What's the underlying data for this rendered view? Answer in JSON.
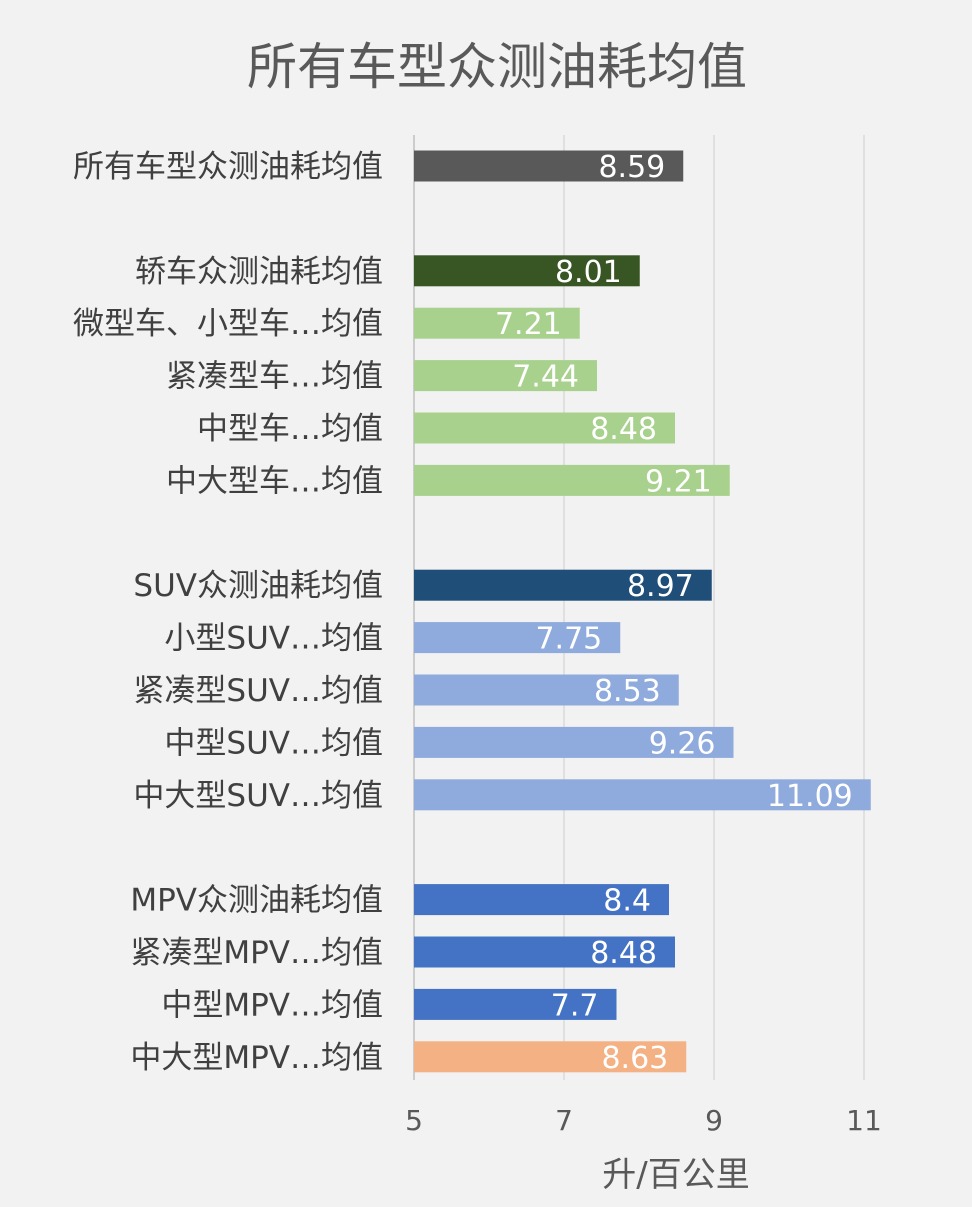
{
  "chart_data": {
    "type": "bar",
    "orientation": "horizontal",
    "title": "所有车型众测油耗均值",
    "xlabel": "升/百公里",
    "ylabel": "",
    "xlim": [
      5,
      11
    ],
    "xticks": [
      5,
      7,
      9,
      11
    ],
    "grid": true,
    "legend": "none",
    "groups": [
      {
        "bars": [
          {
            "label": "所有车型众测油耗均值",
            "value": 8.59,
            "display": "8.59",
            "color": "#595959"
          }
        ]
      },
      {
        "bars": [
          {
            "label": "轿车众测油耗均值",
            "value": 8.01,
            "display": "8.01",
            "color": "#375623"
          },
          {
            "label": "微型车、小型车…均值",
            "value": 7.21,
            "display": "7.21",
            "color": "#a9d18e"
          },
          {
            "label": "紧凑型车…均值",
            "value": 7.44,
            "display": "7.44",
            "color": "#a9d18e"
          },
          {
            "label": "中型车…均值",
            "value": 8.48,
            "display": "8.48",
            "color": "#a9d18e"
          },
          {
            "label": "中大型车…均值",
            "value": 9.21,
            "display": "9.21",
            "color": "#a9d18e"
          }
        ]
      },
      {
        "bars": [
          {
            "label": "SUV众测油耗均值",
            "value": 8.97,
            "display": "8.97",
            "color": "#1f4e79"
          },
          {
            "label": "小型SUV…均值",
            "value": 7.75,
            "display": "7.75",
            "color": "#8faadc"
          },
          {
            "label": "紧凑型SUV…均值",
            "value": 8.53,
            "display": "8.53",
            "color": "#8faadc"
          },
          {
            "label": "中型SUV…均值",
            "value": 9.26,
            "display": "9.26",
            "color": "#8faadc"
          },
          {
            "label": "中大型SUV…均值",
            "value": 11.09,
            "display": "11.09",
            "color": "#8faadc"
          }
        ]
      },
      {
        "bars": [
          {
            "label": "MPV众测油耗均值",
            "value": 8.4,
            "display": "8.4",
            "color": "#4472c4"
          },
          {
            "label": "紧凑型MPV…均值",
            "value": 8.48,
            "display": "8.48",
            "color": "#4472c4"
          },
          {
            "label": "中型MPV…均值",
            "value": 7.7,
            "display": "7.7",
            "color": "#4472c4"
          },
          {
            "label": "中大型MPV…均值",
            "value": 8.63,
            "display": "8.63",
            "color": "#f4b183"
          }
        ]
      }
    ]
  }
}
